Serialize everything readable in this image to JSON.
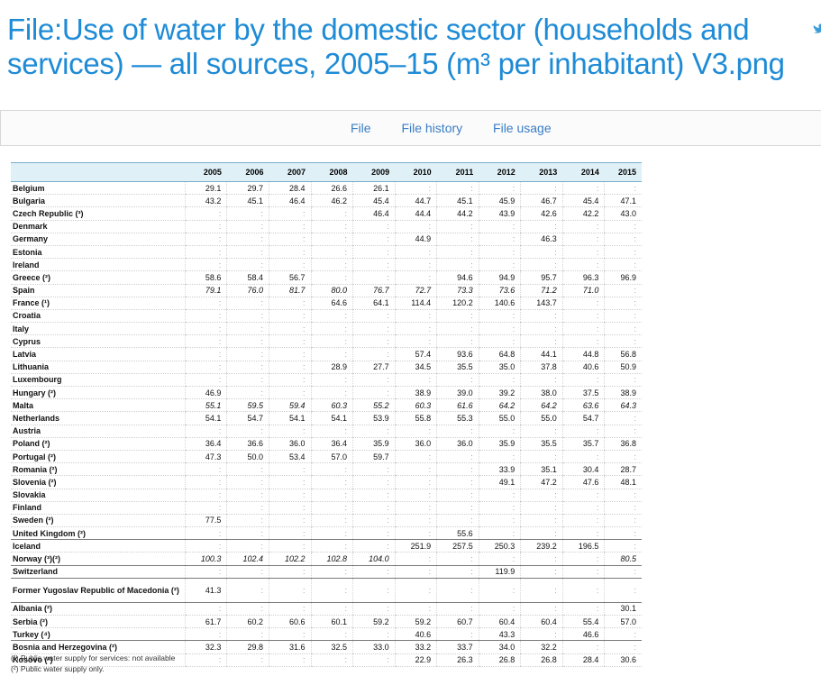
{
  "page": {
    "title": "File:Use of water by the domestic sector (households and services) — all sources, 2005–15 (m³ per inhabitant) V3.png"
  },
  "icons": {
    "twitter": "twitter-icon"
  },
  "file_tabs": [
    "File",
    "File history",
    "File usage"
  ],
  "table": {
    "columns": [
      "",
      "2005",
      "2006",
      "2007",
      "2008",
      "2009",
      "2010",
      "2011",
      "2012",
      "2013",
      "2014",
      "2015"
    ],
    "rows": [
      {
        "country": "Belgium",
        "values": [
          "29.1",
          "29.7",
          "28.4",
          "26.6",
          "26.1",
          ":",
          ":",
          ":",
          ":",
          ":",
          ":"
        ]
      },
      {
        "country": "Bulgaria",
        "values": [
          "43.2",
          "45.1",
          "46.4",
          "46.2",
          "45.4",
          "44.7",
          "45.1",
          "45.9",
          "46.7",
          "45.4",
          "47.1"
        ]
      },
      {
        "country": "Czech Republic (³)",
        "values": [
          ":",
          ":",
          ":",
          ":",
          "46.4",
          "44.4",
          "44.2",
          "43.9",
          "42.6",
          "42.2",
          "43.0"
        ]
      },
      {
        "country": "Denmark",
        "values": [
          ":",
          ":",
          ":",
          ":",
          ":",
          ":",
          ":",
          ":",
          ":",
          ":",
          ":"
        ]
      },
      {
        "country": "Germany",
        "values": [
          ":",
          ":",
          ":",
          ":",
          ":",
          "44.9",
          ":",
          ":",
          "46.3",
          ":",
          ":"
        ]
      },
      {
        "country": "Estonia",
        "values": [
          ":",
          ":",
          ":",
          ":",
          ":",
          ":",
          ":",
          ":",
          ":",
          ":",
          ":"
        ]
      },
      {
        "country": "Ireland",
        "values": [
          ":",
          ":",
          ":",
          ":",
          ":",
          ":",
          ":",
          ":",
          ":",
          ":",
          ":"
        ]
      },
      {
        "country": "Greece (²)",
        "values": [
          "58.6",
          "58.4",
          "56.7",
          ":",
          ":",
          ":",
          "94.6",
          "94.9",
          "95.7",
          "96.3",
          "96.9"
        ]
      },
      {
        "country": "Spain",
        "values": [
          "79.1",
          "76.0",
          "81.7",
          "80.0",
          "76.7",
          "72.7",
          "73.3",
          "73.6",
          "71.2",
          "71.0",
          ":"
        ]
      },
      {
        "country": "France (¹)",
        "values": [
          ":",
          ":",
          ":",
          "64.6",
          "64.1",
          "114.4",
          "120.2",
          "140.6",
          "143.7",
          ":",
          ":"
        ]
      },
      {
        "country": "Croatia",
        "values": [
          ":",
          ":",
          ":",
          ":",
          ":",
          ":",
          ":",
          ":",
          ":",
          ":",
          ":"
        ]
      },
      {
        "country": "Italy",
        "values": [
          ":",
          ":",
          ":",
          ":",
          ":",
          ":",
          ":",
          ":",
          ":",
          ":",
          ":"
        ]
      },
      {
        "country": "Cyprus",
        "values": [
          ":",
          ":",
          ":",
          ":",
          ":",
          ":",
          ":",
          ":",
          ":",
          ":",
          ":"
        ]
      },
      {
        "country": "Latvia",
        "values": [
          ":",
          ":",
          ":",
          ":",
          ":",
          "57.4",
          "93.6",
          "64.8",
          "44.1",
          "44.8",
          "56.8"
        ]
      },
      {
        "country": "Lithuania",
        "values": [
          ":",
          ":",
          ":",
          "28.9",
          "27.7",
          "34.5",
          "35.5",
          "35.0",
          "37.8",
          "40.6",
          "50.9"
        ]
      },
      {
        "country": "Luxembourg",
        "values": [
          ":",
          ":",
          ":",
          ":",
          ":",
          ":",
          ":",
          ":",
          ":",
          ":",
          ":"
        ]
      },
      {
        "country": "Hungary (²)",
        "values": [
          "46.9",
          ":",
          ":",
          ":",
          ":",
          "38.9",
          "39.0",
          "39.2",
          "38.0",
          "37.5",
          "38.9"
        ]
      },
      {
        "country": "Malta",
        "values": [
          "55.1",
          "59.5",
          "59.4",
          "60.3",
          "55.2",
          "60.3",
          "61.6",
          "64.2",
          "64.2",
          "63.6",
          "64.3"
        ]
      },
      {
        "country": "Netherlands",
        "values": [
          "54.1",
          "54.7",
          "54.1",
          "54.1",
          "53.9",
          "55.8",
          "55.3",
          "55.0",
          "55.0",
          "54.7",
          ":"
        ]
      },
      {
        "country": "Austria",
        "values": [
          ":",
          ":",
          ":",
          ":",
          ":",
          ":",
          ":",
          ":",
          ":",
          ":",
          ":"
        ]
      },
      {
        "country": "Poland (²)",
        "values": [
          "36.4",
          "36.6",
          "36.0",
          "36.4",
          "35.9",
          "36.0",
          "36.0",
          "35.9",
          "35.5",
          "35.7",
          "36.8"
        ]
      },
      {
        "country": "Portugal (²)",
        "values": [
          "47.3",
          "50.0",
          "53.4",
          "57.0",
          "59.7",
          ":",
          ":",
          ":",
          ":",
          ":",
          ":"
        ]
      },
      {
        "country": "Romania (²)",
        "values": [
          ":",
          ":",
          ":",
          ":",
          ":",
          ":",
          ":",
          "33.9",
          "35.1",
          "30.4",
          "28.7"
        ]
      },
      {
        "country": "Slovenia (²)",
        "values": [
          ":",
          ":",
          ":",
          ":",
          ":",
          ":",
          ":",
          "49.1",
          "47.2",
          "47.6",
          "48.1"
        ]
      },
      {
        "country": "Slovakia",
        "values": [
          ":",
          ":",
          ":",
          ":",
          ":",
          ":",
          ":",
          ":",
          ":",
          ":",
          ":"
        ]
      },
      {
        "country": "Finland",
        "values": [
          ":",
          ":",
          ":",
          ":",
          ":",
          ":",
          ":",
          ":",
          ":",
          ":",
          ":"
        ]
      },
      {
        "country": "Sweden (²)",
        "values": [
          "77.5",
          ":",
          ":",
          ":",
          ":",
          ":",
          ":",
          ":",
          ":",
          ":",
          ":"
        ]
      },
      {
        "country": "United Kingdom (²)",
        "values": [
          ":",
          ":",
          ":",
          ":",
          ":",
          ":",
          "55.6",
          ":",
          ":",
          ":",
          ":"
        ]
      },
      {
        "country": "Iceland",
        "values": [
          ":",
          ":",
          ":",
          ":",
          ":",
          "251.9",
          "257.5",
          "250.3",
          "239.2",
          "196.5",
          ":"
        ]
      },
      {
        "country": "Norway (³)(²)",
        "values": [
          "100.3",
          "102.4",
          "102.2",
          "102.8",
          "104.0",
          ":",
          ":",
          ":",
          ":",
          ":",
          "80.5"
        ]
      },
      {
        "country": "Switzerland",
        "values": [
          ":",
          ":",
          ":",
          ":",
          ":",
          ":",
          ":",
          "119.9",
          ":",
          ":",
          ":"
        ]
      },
      {
        "country": "Former Yugoslav Republic of Macedonia (²)",
        "values": [
          "41.3",
          ":",
          ":",
          ":",
          ":",
          ":",
          ":",
          ":",
          ":",
          ":",
          ":"
        ]
      },
      {
        "country": "Albania (²)",
        "values": [
          ":",
          ":",
          ":",
          ":",
          ":",
          ":",
          ":",
          ":",
          ":",
          ":",
          "30.1"
        ]
      },
      {
        "country": "Serbia (²)",
        "values": [
          "61.7",
          "60.2",
          "60.6",
          "60.1",
          "59.2",
          "59.2",
          "60.7",
          "60.4",
          "60.4",
          "55.4",
          "57.0"
        ]
      },
      {
        "country": "Turkey (⁴)",
        "values": [
          ":",
          ":",
          ":",
          ":",
          ":",
          "40.6",
          ":",
          "43.3",
          ":",
          "46.6",
          ":"
        ]
      },
      {
        "country": "Bosnia and Herzegovina (²)",
        "values": [
          "32.3",
          "29.8",
          "31.6",
          "32.5",
          "33.0",
          "33.2",
          "33.7",
          "34.0",
          "32.2",
          ":",
          ":"
        ]
      },
      {
        "country": "Kosovo (²)",
        "values": [
          ":",
          ":",
          ":",
          ":",
          ":",
          "22.9",
          "26.3",
          "26.8",
          "26.8",
          "28.4",
          "30.6"
        ]
      }
    ]
  },
  "footnotes": [
    "(¹) Public water supply for services: not available",
    "(²) Public water supply only."
  ]
}
